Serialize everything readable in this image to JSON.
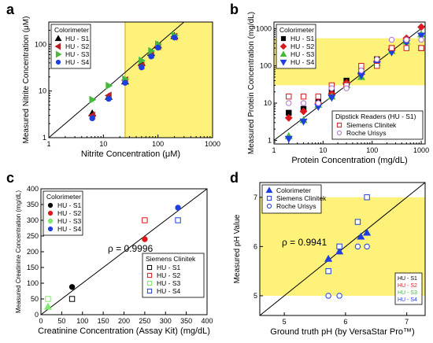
{
  "colors": {
    "highlight": "#fff27a",
    "black": "#000000",
    "dark_red": "#b22222",
    "green": "#46b83c",
    "light_green": "#7ee86a",
    "blue": "#1e3fe0",
    "red": "#d9191e",
    "pink": "#e07a7a",
    "purple": "#9a6fc9",
    "grid_frame": "#000000"
  },
  "chart_data": [
    {
      "panel": "a",
      "type": "scatter",
      "xscale": "log",
      "yscale": "log",
      "xlim": [
        1,
        1000
      ],
      "ylim": [
        1,
        300
      ],
      "xticks": [
        1,
        10,
        100,
        1000
      ],
      "yticks": [
        1,
        10,
        100
      ],
      "xlabel": "Nitrite Concentration (μM)",
      "ylabel": "Measured Nitrite Concentration (μM)",
      "legend_title": "Colorimeter",
      "legend_position": "top-left",
      "highlight": {
        "axis": "x",
        "range": [
          25,
          1000
        ]
      },
      "identity_line": true,
      "series": [
        {
          "name": "HU - S1",
          "marker": "triangle-up",
          "color": "#000000",
          "x": [
            6.25,
            12.5,
            25,
            50,
            75,
            100,
            200
          ],
          "y": [
            3.3,
            7.5,
            16,
            40,
            65,
            95,
            150
          ]
        },
        {
          "name": "HU - S2",
          "marker": "triangle-left",
          "color": "#b22222",
          "x": [
            6.25,
            12.5,
            25,
            50,
            75,
            100,
            200
          ],
          "y": [
            3.0,
            8.0,
            17,
            35,
            60,
            90,
            145
          ]
        },
        {
          "name": "HU - S3",
          "marker": "triangle-right",
          "color": "#46b83c",
          "x": [
            6.25,
            12.5,
            25,
            50,
            75,
            100,
            200
          ],
          "y": [
            6.5,
            13,
            18,
            45,
            72,
            100,
            155
          ]
        },
        {
          "name": "HU - S4",
          "marker": "circle",
          "color": "#1e3fe0",
          "x": [
            6.25,
            12.5,
            25,
            50,
            75,
            100,
            200
          ],
          "y": [
            2.6,
            6.8,
            15,
            32,
            55,
            85,
            140
          ]
        }
      ]
    },
    {
      "panel": "b",
      "type": "scatter",
      "xscale": "log",
      "yscale": "log",
      "xlim": [
        1,
        1200
      ],
      "ylim": [
        0.8,
        1500
      ],
      "xticks": [
        1,
        10,
        100,
        1000
      ],
      "yticks": [
        1,
        10,
        100,
        1000
      ],
      "xlabel": "Protein Concentration (mg/dL)",
      "ylabel": "Measured Protein Concentration (mg/dL)",
      "legend_title": "Colorimeter",
      "legend_position": "top-left",
      "legend2_title": "Dipstick Readers (HU - S1)",
      "legend2_position": "bottom-right",
      "highlight": {
        "axis": "y",
        "range": [
          30,
          550
        ]
      },
      "identity_line": true,
      "series": [
        {
          "name": "HU - S1",
          "marker": "square",
          "color": "#000000",
          "x": [
            2,
            4,
            8,
            15,
            30,
            60,
            125,
            250,
            500,
            1000
          ],
          "y": [
            5.5,
            7,
            12,
            20,
            40,
            70,
            150,
            300,
            500,
            300
          ]
        },
        {
          "name": "HU - S2",
          "marker": "diamond",
          "color": "#d9191e",
          "x": [
            2,
            4,
            8,
            15,
            30,
            60,
            125,
            250,
            500,
            1000
          ],
          "y": [
            4,
            6,
            10,
            18,
            35,
            60,
            130,
            280,
            550,
            1100
          ]
        },
        {
          "name": "HU - S3",
          "marker": "triangle-up",
          "color": "#46b83c",
          "x": [
            2,
            4,
            8,
            15,
            30,
            60,
            125,
            250,
            500,
            1000
          ],
          "y": [
            1.3,
            3.5,
            9,
            15,
            30,
            50,
            120,
            250,
            450,
            700
          ]
        },
        {
          "name": "HU - S4",
          "marker": "triangle-down",
          "color": "#1e3fe0",
          "x": [
            2,
            4,
            8,
            15,
            30,
            60,
            125,
            250,
            500,
            1000
          ],
          "y": [
            1.1,
            3.2,
            8,
            14,
            28,
            55,
            110,
            230,
            420,
            650
          ]
        },
        {
          "name": "Siemens Clinitek",
          "marker": "square-open",
          "color": "#d9191e",
          "x": [
            2,
            4,
            8,
            15,
            30,
            60,
            125,
            250,
            500,
            1000
          ],
          "y": [
            15,
            15,
            15,
            30,
            30,
            100,
            100,
            300,
            300,
            300
          ]
        },
        {
          "name": "Roche Urisys",
          "marker": "circle-open",
          "color": "#b06fd0",
          "x": [
            2,
            4,
            8,
            15,
            30,
            60,
            125,
            250,
            500,
            1000
          ],
          "y": [
            10,
            10,
            10,
            25,
            25,
            75,
            150,
            500,
            500,
            500
          ]
        }
      ]
    },
    {
      "panel": "c",
      "type": "scatter",
      "xscale": "linear",
      "yscale": "linear",
      "xlim": [
        0,
        400
      ],
      "ylim": [
        0,
        400
      ],
      "xticks": [
        0,
        50,
        100,
        150,
        200,
        250,
        300,
        350,
        400
      ],
      "yticks": [
        0,
        50,
        100,
        150,
        200,
        250,
        300,
        350,
        400
      ],
      "xlabel": "Creatinine Concentration (Assay Kit) (mg/dL)",
      "ylabel": "Measured Creatinine Concentration (mg/dL)",
      "legend_title": "Colorimeter",
      "legend_position": "top-left",
      "legend2_title": "Siemens Clinitek",
      "legend2_position": "bottom-right",
      "annotation": "ρ = 0.9996",
      "identity_line": true,
      "series": [
        {
          "name": "HU - S1",
          "marker": "circle",
          "color": "#000000",
          "x": [
            75
          ],
          "y": [
            88
          ]
        },
        {
          "name": "HU - S2",
          "marker": "circle",
          "color": "#d9191e",
          "x": [
            250
          ],
          "y": [
            240
          ]
        },
        {
          "name": "HU - S3",
          "marker": "circle",
          "color": "#7ee86a",
          "x": [],
          "y": []
        },
        {
          "name": "HU - S4",
          "marker": "circle",
          "color": "#1e3fe0",
          "x": [
            330
          ],
          "y": [
            340
          ]
        },
        {
          "name": "HU - S1",
          "marker": "square-open",
          "color": "#000000",
          "x": [
            75
          ],
          "y": [
            50
          ]
        },
        {
          "name": "HU - S2",
          "marker": "square-open",
          "color": "#d9191e",
          "x": [
            250
          ],
          "y": [
            300
          ]
        },
        {
          "name": "HU - S3",
          "marker": "square-open",
          "color": "#7ee86a",
          "x": [
            17
          ],
          "y": [
            50
          ]
        },
        {
          "name": "HU - S4",
          "marker": "square-open",
          "color": "#1e3fe0",
          "x": [
            330
          ],
          "y": [
            300
          ]
        }
      ],
      "extra_points": [
        {
          "marker": "triangle-up",
          "color": "#7ee86a",
          "x": 17,
          "y": 25
        }
      ]
    },
    {
      "panel": "d",
      "type": "scatter",
      "xscale": "linear",
      "yscale": "linear",
      "xlim": [
        4.6,
        7.3
      ],
      "ylim": [
        4.6,
        7.3
      ],
      "xticks": [
        5,
        6,
        7
      ],
      "yticks": [
        5,
        6,
        7
      ],
      "xlabel": "Ground truth pH (by VersaStar Pro™)",
      "ylabel": "Measured pH Value",
      "legend_position": "top-left",
      "legend2_position": "bottom-right",
      "annotation": "ρ = 0.9941",
      "highlight": {
        "axis": "both",
        "range": [
          5,
          7
        ]
      },
      "identity_line": true,
      "series": [
        {
          "name": "Colorimeter",
          "marker": "triangle-up",
          "color": "#1e3fe0",
          "x": [
            5.72,
            5.9,
            6.25,
            6.35
          ],
          "y": [
            5.75,
            5.9,
            6.2,
            6.28
          ]
        },
        {
          "name": "Siemens Clinitek",
          "marker": "square-open",
          "color": "#1e3fe0",
          "x": [
            5.72,
            5.9,
            6.2,
            6.35
          ],
          "y": [
            5.5,
            6.0,
            6.5,
            7.0
          ]
        },
        {
          "name": "Roche Urisys",
          "marker": "circle-open",
          "color": "#1e3fe0",
          "x": [
            5.72,
            5.9,
            6.2,
            6.35
          ],
          "y": [
            5.0,
            5.0,
            6.0,
            6.0
          ]
        }
      ],
      "subset_legend": [
        "HU - S1",
        "HU - S2",
        "HU - S3",
        "HU - S4"
      ],
      "subset_colors": [
        "#000000",
        "#d9191e",
        "#46b83c",
        "#1e3fe0"
      ]
    }
  ]
}
